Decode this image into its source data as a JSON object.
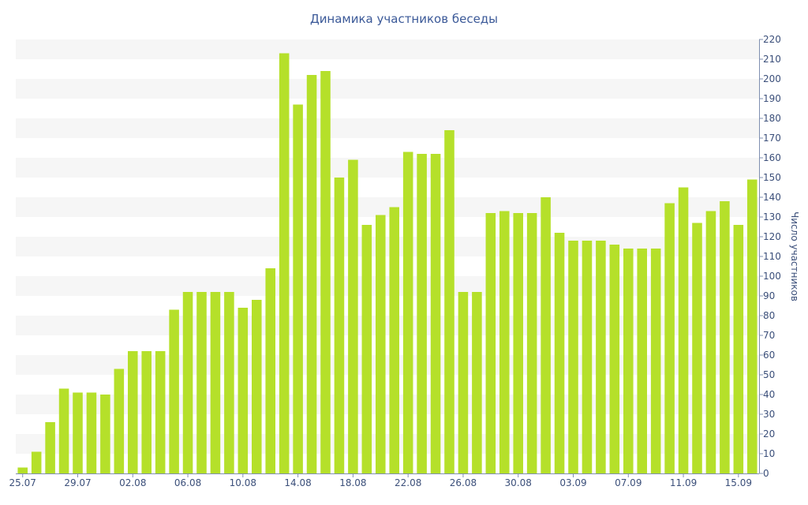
{
  "chart_data": {
    "type": "bar",
    "title": "Динамика участников беседы",
    "xlabel": "",
    "ylabel": "Число участников",
    "ylim": [
      0,
      220
    ],
    "y_tick_step": 10,
    "grid": "alternating horizontal bands",
    "y_axis_position": "right",
    "x_tick_labels": [
      "25.07",
      "29.07",
      "02.08",
      "06.08",
      "10.08",
      "14.08",
      "18.08",
      "22.08",
      "26.08",
      "30.08",
      "03.09",
      "07.09",
      "11.09",
      "15.09"
    ],
    "x_tick_every": 4,
    "categories": [
      "25.07",
      "26.07",
      "27.07",
      "28.07",
      "29.07",
      "30.07",
      "31.07",
      "01.08",
      "02.08",
      "03.08",
      "04.08",
      "05.08",
      "06.08",
      "07.08",
      "08.08",
      "09.08",
      "10.08",
      "11.08",
      "12.08",
      "13.08",
      "14.08",
      "15.08",
      "16.08",
      "17.08",
      "18.08",
      "19.08",
      "20.08",
      "21.08",
      "22.08",
      "23.08",
      "24.08",
      "25.08",
      "26.08",
      "27.08",
      "28.08",
      "29.08",
      "30.08",
      "31.08",
      "01.09",
      "02.09",
      "03.09",
      "04.09",
      "05.09",
      "06.09",
      "07.09",
      "08.09",
      "09.09",
      "10.09",
      "11.09",
      "12.09",
      "13.09",
      "14.09",
      "15.09",
      "16.09"
    ],
    "values": [
      3,
      11,
      26,
      43,
      41,
      41,
      40,
      53,
      62,
      62,
      62,
      83,
      92,
      92,
      92,
      92,
      84,
      88,
      104,
      213,
      187,
      202,
      204,
      150,
      159,
      126,
      131,
      135,
      163,
      162,
      162,
      174,
      92,
      92,
      132,
      133,
      132,
      132,
      140,
      122,
      118,
      118,
      118,
      116,
      114,
      114,
      114,
      137,
      145,
      127,
      133,
      138,
      126,
      149
    ],
    "colors": {
      "bar": "#b5e02a",
      "band": "#f6f6f6",
      "axis": "#7f8fb0",
      "text": "#3b4f7a",
      "title": "#3b5998"
    }
  }
}
